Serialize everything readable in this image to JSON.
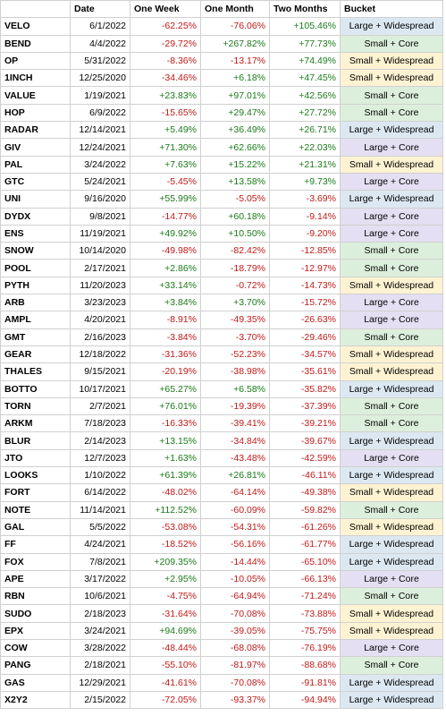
{
  "headers": [
    "",
    "Date",
    "One Week",
    "One Month",
    "Two Months",
    "Bucket"
  ],
  "bucket_colors": {
    "Large + Widespread": "#dce8f1",
    "Small + Core": "#dcefdc",
    "Small + Widespread": "#fdf3d2",
    "Large + Core": "#e4dff2"
  },
  "value_colors": {
    "positive": "#1a7a1a",
    "negative": "#c01a1a"
  },
  "rows": [
    {
      "token": "VELO",
      "date": "6/1/2022",
      "week": "-62.25%",
      "month": "-76.06%",
      "two_months": "+105.46%",
      "bucket": "Large + Widespread"
    },
    {
      "token": "BEND",
      "date": "4/4/2022",
      "week": "-29.72%",
      "month": "+267.82%",
      "two_months": "+77.73%",
      "bucket": "Small + Core"
    },
    {
      "token": "OP",
      "date": "5/31/2022",
      "week": "-8.36%",
      "month": "-13.17%",
      "two_months": "+74.49%",
      "bucket": "Small + Widespread"
    },
    {
      "token": "1INCH",
      "date": "12/25/2020",
      "week": "-34.46%",
      "month": "+6.18%",
      "two_months": "+47.45%",
      "bucket": "Small + Widespread"
    },
    {
      "token": "VALUE",
      "date": "1/19/2021",
      "week": "+23.83%",
      "month": "+97.01%",
      "two_months": "+42.56%",
      "bucket": "Small + Core"
    },
    {
      "token": "HOP",
      "date": "6/9/2022",
      "week": "-15.65%",
      "month": "+29.47%",
      "two_months": "+27.72%",
      "bucket": "Small + Core"
    },
    {
      "token": "RADAR",
      "date": "12/14/2021",
      "week": "+5.49%",
      "month": "+36.49%",
      "two_months": "+26.71%",
      "bucket": "Large + Widespread"
    },
    {
      "token": "GIV",
      "date": "12/24/2021",
      "week": "+71.30%",
      "month": "+62.66%",
      "two_months": "+22.03%",
      "bucket": "Large + Core"
    },
    {
      "token": "PAL",
      "date": "3/24/2022",
      "week": "+7.63%",
      "month": "+15.22%",
      "two_months": "+21.31%",
      "bucket": "Small + Widespread"
    },
    {
      "token": "GTC",
      "date": "5/24/2021",
      "week": "-5.45%",
      "month": "+13.58%",
      "two_months": "+9.73%",
      "bucket": "Large + Core"
    },
    {
      "token": "UNI",
      "date": "9/16/2020",
      "week": "+55.99%",
      "month": "-5.05%",
      "two_months": "-3.69%",
      "bucket": "Large + Widespread"
    },
    {
      "token": "DYDX",
      "date": "9/8/2021",
      "week": "-14.77%",
      "month": "+60.18%",
      "two_months": "-9.14%",
      "bucket": "Large + Core"
    },
    {
      "token": "ENS",
      "date": "11/19/2021",
      "week": "+49.92%",
      "month": "+10.50%",
      "two_months": "-9.20%",
      "bucket": "Large + Core"
    },
    {
      "token": "SNOW",
      "date": "10/14/2020",
      "week": "-49.98%",
      "month": "-82.42%",
      "two_months": "-12.85%",
      "bucket": "Small + Core"
    },
    {
      "token": "POOL",
      "date": "2/17/2021",
      "week": "+2.86%",
      "month": "-18.79%",
      "two_months": "-12.97%",
      "bucket": "Small + Core"
    },
    {
      "token": "PYTH",
      "date": "11/20/2023",
      "week": "+33.14%",
      "month": "-0.72%",
      "two_months": "-14.73%",
      "bucket": "Small + Widespread"
    },
    {
      "token": "ARB",
      "date": "3/23/2023",
      "week": "+3.84%",
      "month": "+3.70%",
      "two_months": "-15.72%",
      "bucket": "Large + Core"
    },
    {
      "token": "AMPL",
      "date": "4/20/2021",
      "week": "-8.91%",
      "month": "-49.35%",
      "two_months": "-26.63%",
      "bucket": "Large + Core"
    },
    {
      "token": "GMT",
      "date": "2/16/2023",
      "week": "-3.84%",
      "month": "-3.70%",
      "two_months": "-29.46%",
      "bucket": "Small + Core"
    },
    {
      "token": "GEAR",
      "date": "12/18/2022",
      "week": "-31.36%",
      "month": "-52.23%",
      "two_months": "-34.57%",
      "bucket": "Small + Widespread"
    },
    {
      "token": "THALES",
      "date": "9/15/2021",
      "week": "-20.19%",
      "month": "-38.98%",
      "two_months": "-35.61%",
      "bucket": "Small + Widespread"
    },
    {
      "token": "BOTTO",
      "date": "10/17/2021",
      "week": "+65.27%",
      "month": "+6.58%",
      "two_months": "-35.82%",
      "bucket": "Large + Widespread"
    },
    {
      "token": "TORN",
      "date": "2/7/2021",
      "week": "+76.01%",
      "month": "-19.39%",
      "two_months": "-37.39%",
      "bucket": "Small + Core"
    },
    {
      "token": "ARKM",
      "date": "7/18/2023",
      "week": "-16.33%",
      "month": "-39.41%",
      "two_months": "-39.21%",
      "bucket": "Small + Core"
    },
    {
      "token": "BLUR",
      "date": "2/14/2023",
      "week": "+13.15%",
      "month": "-34.84%",
      "two_months": "-39.67%",
      "bucket": "Large + Widespread"
    },
    {
      "token": "JTO",
      "date": "12/7/2023",
      "week": "+1.63%",
      "month": "-43.48%",
      "two_months": "-42.59%",
      "bucket": "Large + Core"
    },
    {
      "token": "LOOKS",
      "date": "1/10/2022",
      "week": "+61.39%",
      "month": "+26.81%",
      "two_months": "-46.11%",
      "bucket": "Large + Widespread"
    },
    {
      "token": "FORT",
      "date": "6/14/2022",
      "week": "-48.02%",
      "month": "-64.14%",
      "two_months": "-49.38%",
      "bucket": "Small + Widespread"
    },
    {
      "token": "NOTE",
      "date": "11/14/2021",
      "week": "+112.52%",
      "month": "-60.09%",
      "two_months": "-59.82%",
      "bucket": "Small + Core"
    },
    {
      "token": "GAL",
      "date": "5/5/2022",
      "week": "-53.08%",
      "month": "-54.31%",
      "two_months": "-61.26%",
      "bucket": "Small + Widespread"
    },
    {
      "token": "FF",
      "date": "4/24/2021",
      "week": "-18.52%",
      "month": "-56.16%",
      "two_months": "-61.77%",
      "bucket": "Large + Widespread"
    },
    {
      "token": "FOX",
      "date": "7/8/2021",
      "week": "+209.35%",
      "month": "-14.44%",
      "two_months": "-65.10%",
      "bucket": "Large + Widespread"
    },
    {
      "token": "APE",
      "date": "3/17/2022",
      "week": "+2.95%",
      "month": "-10.05%",
      "two_months": "-66.13%",
      "bucket": "Large + Core"
    },
    {
      "token": "RBN",
      "date": "10/6/2021",
      "week": "-4.75%",
      "month": "-64.94%",
      "two_months": "-71.24%",
      "bucket": "Small + Core"
    },
    {
      "token": "SUDO",
      "date": "2/18/2023",
      "week": "-31.64%",
      "month": "-70.08%",
      "two_months": "-73.88%",
      "bucket": "Small + Widespread"
    },
    {
      "token": "EPX",
      "date": "3/24/2021",
      "week": "+94.69%",
      "month": "-39.05%",
      "two_months": "-75.75%",
      "bucket": "Small + Widespread"
    },
    {
      "token": "COW",
      "date": "3/28/2022",
      "week": "-48.44%",
      "month": "-68.08%",
      "two_months": "-76.19%",
      "bucket": "Large + Core"
    },
    {
      "token": "PANG",
      "date": "2/18/2021",
      "week": "-55.10%",
      "month": "-81.97%",
      "two_months": "-88.68%",
      "bucket": "Small + Core"
    },
    {
      "token": "GAS",
      "date": "12/29/2021",
      "week": "-41.61%",
      "month": "-70.08%",
      "two_months": "-91.81%",
      "bucket": "Large + Widespread"
    },
    {
      "token": "X2Y2",
      "date": "2/15/2022",
      "week": "-72.05%",
      "month": "-93.37%",
      "two_months": "-94.94%",
      "bucket": "Large + Widespread"
    }
  ]
}
